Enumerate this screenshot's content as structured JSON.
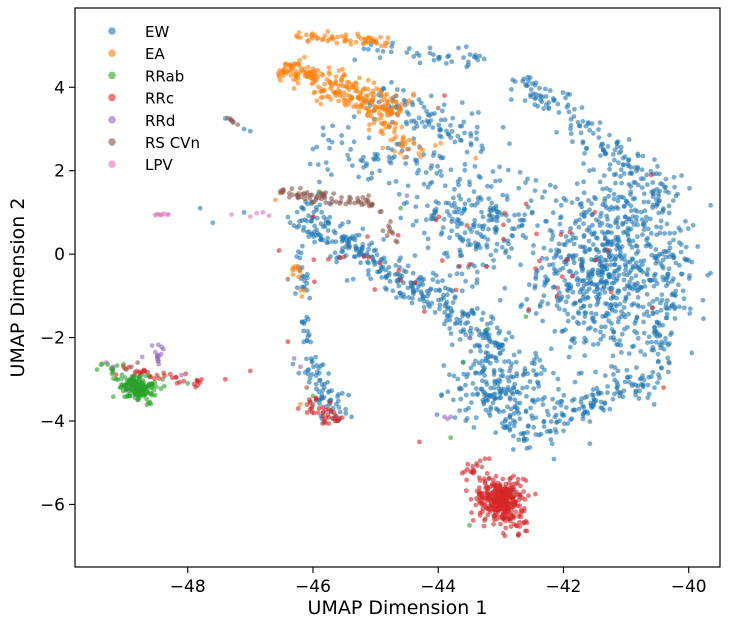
{
  "chart_data": {
    "type": "scatter",
    "xlabel": "UMAP Dimension 1",
    "ylabel": "UMAP Dimension 2",
    "xlim": [
      -49.8,
      -39.5
    ],
    "ylim": [
      -7.5,
      5.9
    ],
    "x_ticks": [
      -48,
      -46,
      -44,
      -42,
      -40
    ],
    "y_ticks": [
      -6,
      -4,
      -2,
      0,
      2,
      4
    ],
    "x_tick_labels": [
      "−48",
      "−46",
      "−44",
      "−42",
      "−40"
    ],
    "y_tick_labels": [
      "−6",
      "−4",
      "−2",
      "0",
      "2",
      "4"
    ],
    "grid": false,
    "legend_position": "top-left",
    "series": [
      {
        "name": "EW",
        "color": "#1f77b4",
        "approx_regions": [
          {
            "kind": "blob",
            "center": [
              -41.3,
              -0.3
            ],
            "spread": [
              1.0,
              2.0
            ],
            "n": 700
          },
          {
            "kind": "band",
            "from": [
              -42.8,
              4.3
            ],
            "to": [
              -40.2,
              1.2
            ],
            "width": 0.35,
            "n": 160
          },
          {
            "kind": "band",
            "from": [
              -40.1,
              0.8
            ],
            "to": [
              -40.6,
              -3.2
            ],
            "width": 0.35,
            "n": 120
          },
          {
            "kind": "band",
            "from": [
              -40.8,
              -3.0
            ],
            "to": [
              -42.8,
              -4.5
            ],
            "width": 0.4,
            "n": 140
          },
          {
            "kind": "band",
            "from": [
              -46.3,
              1.1
            ],
            "to": [
              -43.0,
              -2.2
            ],
            "width": 0.45,
            "n": 340
          },
          {
            "kind": "blob",
            "center": [
              -43.4,
              0.8
            ],
            "spread": [
              0.9,
              1.3
            ],
            "n": 220
          },
          {
            "kind": "band",
            "from": [
              -45.0,
              3.8
            ],
            "to": [
              -43.4,
              2.7
            ],
            "width": 0.45,
            "n": 90
          },
          {
            "kind": "blob",
            "center": [
              -43.0,
              -3.2
            ],
            "spread": [
              0.7,
              0.9
            ],
            "n": 220
          },
          {
            "kind": "band",
            "from": [
              -46.1,
              -2.5
            ],
            "to": [
              -45.6,
              -4.0
            ],
            "width": 0.25,
            "n": 70
          },
          {
            "kind": "band",
            "from": [
              -46.2,
              0.2
            ],
            "to": [
              -46.1,
              -2.2
            ],
            "width": 0.12,
            "n": 35
          },
          {
            "kind": "band",
            "from": [
              -45.4,
              5.0
            ],
            "to": [
              -43.2,
              4.7
            ],
            "width": 0.25,
            "n": 40
          },
          {
            "kind": "blob",
            "center": [
              -44.8,
              2.2
            ],
            "spread": [
              1.2,
              0.9
            ],
            "n": 90
          },
          {
            "kind": "points",
            "points": [
              [
                -47.4,
                3.25
              ],
              [
                -47.3,
                3.2
              ],
              [
                -47.1,
                3.0
              ],
              [
                -47.0,
                2.95
              ],
              [
                -47.8,
                1.1
              ],
              [
                -47.6,
                0.75
              ],
              [
                -47.1,
                1.0
              ]
            ]
          }
        ]
      },
      {
        "name": "EA",
        "color": "#ff7f0e",
        "approx_regions": [
          {
            "kind": "band",
            "from": [
              -46.5,
              4.5
            ],
            "to": [
              -44.6,
              3.4
            ],
            "width": 0.35,
            "n": 260
          },
          {
            "kind": "band",
            "from": [
              -46.4,
              5.25
            ],
            "to": [
              -44.8,
              5.1
            ],
            "width": 0.15,
            "n": 60
          },
          {
            "kind": "band",
            "from": [
              -45.0,
              3.2
            ],
            "to": [
              -44.3,
              2.3
            ],
            "width": 0.3,
            "n": 40
          },
          {
            "kind": "band",
            "from": [
              -46.3,
              -0.3
            ],
            "to": [
              -46.1,
              -1.0
            ],
            "width": 0.1,
            "n": 12
          },
          {
            "kind": "points",
            "points": [
              [
                -46.2,
                -3.6
              ],
              [
                -43.4,
                2.3
              ],
              [
                -46.6,
                1.3
              ]
            ]
          }
        ]
      },
      {
        "name": "RRab",
        "color": "#2ca02c",
        "approx_regions": [
          {
            "kind": "blob",
            "center": [
              -48.8,
              -3.2
            ],
            "spread": [
              0.25,
              0.25
            ],
            "n": 160
          },
          {
            "kind": "band",
            "from": [
              -49.35,
              -2.6
            ],
            "to": [
              -48.6,
              -3.6
            ],
            "width": 0.15,
            "n": 40
          },
          {
            "kind": "points",
            "points": [
              [
                -48.4,
                -3.0
              ],
              [
                -48.0,
                -3.1
              ],
              [
                -43.6,
                -2.6
              ],
              [
                -43.2,
                -1.8
              ],
              [
                -42.6,
                -1.5
              ],
              [
                -44.6,
                1.1
              ],
              [
                -43.8,
                -4.4
              ],
              [
                -46.0,
                -3.4
              ],
              [
                -45.9,
                1.5
              ],
              [
                -43.5,
                -6.5
              ]
            ]
          }
        ]
      },
      {
        "name": "RRc",
        "color": "#d62728",
        "approx_regions": [
          {
            "kind": "blob",
            "center": [
              -43.0,
              -5.9
            ],
            "spread": [
              0.35,
              0.45
            ],
            "n": 280
          },
          {
            "kind": "band",
            "from": [
              -43.5,
              -5.0
            ],
            "to": [
              -42.6,
              -6.7
            ],
            "width": 0.3,
            "n": 80
          },
          {
            "kind": "band",
            "from": [
              -46.1,
              -3.5
            ],
            "to": [
              -45.6,
              -4.0
            ],
            "width": 0.2,
            "n": 40
          },
          {
            "kind": "band",
            "from": [
              -49.2,
              -2.7
            ],
            "to": [
              -47.8,
              -3.1
            ],
            "width": 0.12,
            "n": 35
          },
          {
            "kind": "blob",
            "center": [
              -42.6,
              -0.3
            ],
            "spread": [
              1.3,
              1.5
            ],
            "n": 25
          },
          {
            "kind": "blob",
            "center": [
              -45.0,
              0.0
            ],
            "spread": [
              1.0,
              1.0
            ],
            "n": 18
          },
          {
            "kind": "points",
            "points": [
              [
                -47.4,
                -3.0
              ],
              [
                -47.0,
                -2.8
              ],
              [
                -40.6,
                1.9
              ],
              [
                -43.9,
                3.8
              ],
              [
                -44.3,
                -4.5
              ],
              [
                -46.4,
                -2.1
              ],
              [
                -46.0,
                0.9
              ],
              [
                -40.4,
                -3.2
              ],
              [
                -42.1,
                -1.0
              ]
            ]
          }
        ]
      },
      {
        "name": "RRd",
        "color": "#9467bd",
        "approx_regions": [
          {
            "kind": "blob",
            "center": [
              -48.5,
              -2.4
            ],
            "spread": [
              0.12,
              0.25
            ],
            "n": 15
          },
          {
            "kind": "points",
            "points": [
              [
                -43.9,
                -3.9
              ],
              [
                -43.85,
                -3.95
              ],
              [
                -43.8,
                -3.9
              ],
              [
                -49.3,
                -2.6
              ],
              [
                -49.2,
                -2.7
              ],
              [
                -46.3,
                -2.5
              ],
              [
                -46.2,
                -2.7
              ],
              [
                -44.5,
                1.4
              ],
              [
                -43.5,
                -2.0
              ],
              [
                -48.1,
                -2.9
              ]
            ]
          }
        ]
      },
      {
        "name": "RS CVn",
        "color": "#8c564b",
        "approx_regions": [
          {
            "kind": "band",
            "from": [
              -46.6,
              1.5
            ],
            "to": [
              -45.0,
              1.2
            ],
            "width": 0.15,
            "n": 70
          },
          {
            "kind": "band",
            "from": [
              -45.1,
              1.3
            ],
            "to": [
              -44.6,
              0.2
            ],
            "width": 0.12,
            "n": 15
          },
          {
            "kind": "band",
            "from": [
              -47.4,
              3.3
            ],
            "to": [
              -47.2,
              3.1
            ],
            "width": 0.05,
            "n": 6
          },
          {
            "kind": "points",
            "points": [
              [
                -48.9,
                -2.7
              ],
              [
                -48.8,
                -2.6
              ],
              [
                -46.1,
                -3.2
              ],
              [
                -46.0,
                -3.6
              ],
              [
                -43.3,
                -5.1
              ],
              [
                -44.0,
                3.5
              ],
              [
                -46.4,
                -0.6
              ],
              [
                -42.8,
                -5.7
              ]
            ]
          }
        ]
      },
      {
        "name": "LPV",
        "color": "#e377c2",
        "approx_regions": [
          {
            "kind": "band",
            "from": [
              -48.55,
              0.95
            ],
            "to": [
              -48.3,
              0.95
            ],
            "width": 0.02,
            "n": 8
          },
          {
            "kind": "points",
            "points": [
              [
                -47.3,
                0.95
              ],
              [
                -46.9,
                0.98
              ],
              [
                -46.7,
                0.92
              ],
              [
                -47.0,
                0.9
              ],
              [
                -46.8,
                1.0
              ]
            ]
          }
        ]
      }
    ]
  }
}
